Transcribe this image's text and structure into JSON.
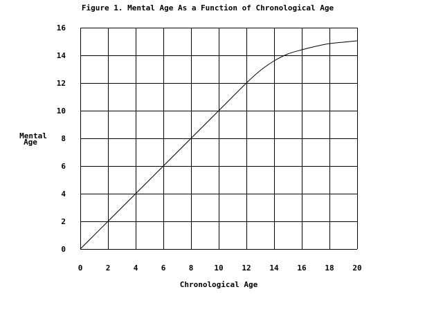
{
  "chart_data": {
    "type": "line",
    "title": "Figure 1. Mental Age As a Function of Chronological Age",
    "xlabel": "Chronological Age",
    "ylabel_lines": [
      "Mental",
      "Age"
    ],
    "xlim": [
      0,
      20
    ],
    "ylim": [
      0,
      16
    ],
    "xticks": [
      "0",
      "2",
      "4",
      "6",
      "8",
      "10",
      "12",
      "14",
      "16",
      "18",
      "20"
    ],
    "yticks": [
      "0",
      "2",
      "4",
      "6",
      "8",
      "10",
      "12",
      "14",
      "16"
    ],
    "grid": true,
    "series": [
      {
        "x": [
          0,
          2,
          4,
          6,
          8,
          10,
          12,
          13,
          14,
          15,
          16,
          17,
          18,
          19,
          20
        ],
        "y": [
          0,
          2,
          4,
          6,
          8,
          10,
          12,
          12.9,
          13.6,
          14.1,
          14.4,
          14.65,
          14.85,
          14.95,
          15.05
        ]
      }
    ],
    "colors": {
      "line": "#000000",
      "grid": "#000000",
      "background": "#ffffff"
    }
  }
}
